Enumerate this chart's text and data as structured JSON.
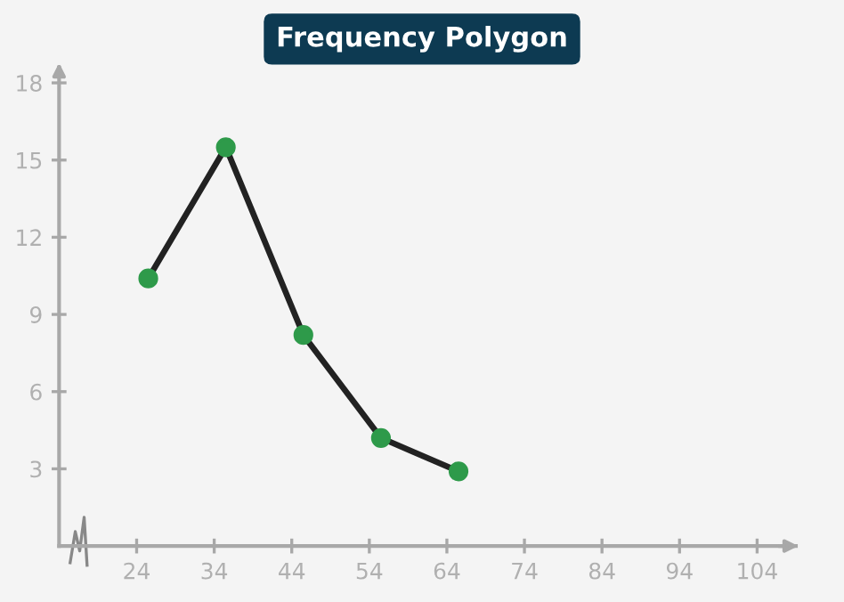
{
  "chart_data": {
    "type": "line",
    "title": "Frequency Polygon",
    "x": [
      25.5,
      35.5,
      45.5,
      55.5,
      65.5
    ],
    "series": [
      {
        "color": "#222222",
        "values": [
          10.4,
          15.5,
          8.2,
          4.2,
          2.9
        ]
      }
    ],
    "marker": "circle",
    "line_style": "solid",
    "grid": false,
    "legend": false,
    "xlim": [
      14,
      109
    ],
    "xticks": [
      24,
      34,
      44,
      54,
      64,
      74,
      84,
      94,
      104
    ],
    "ylim": [
      0,
      18.6
    ],
    "yticks": [
      3,
      6,
      9,
      12,
      15,
      18
    ]
  }
}
